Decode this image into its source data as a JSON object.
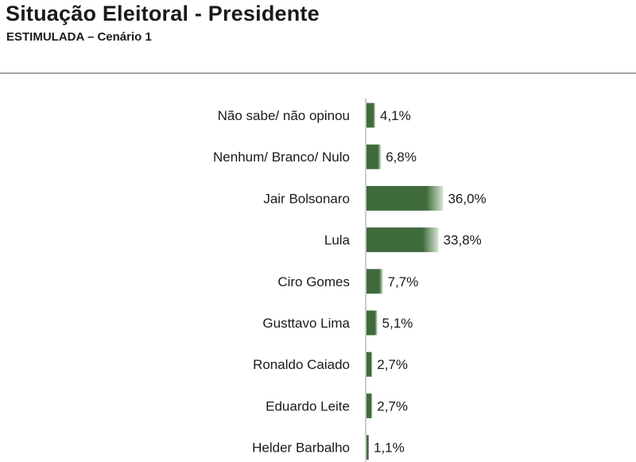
{
  "chart_data": {
    "type": "bar",
    "orientation": "horizontal",
    "title": "Situação Eleitoral - Presidente",
    "subtitle": "ESTIMULADA – Cenário 1",
    "categories": [
      "Não sabe/ não opinou",
      "Nenhum/ Branco/ Nulo",
      "Jair Bolsonaro",
      "Lula",
      "Ciro Gomes",
      "Gusttavo Lima",
      "Ronaldo Caiado",
      "Eduardo Leite",
      "Helder Barbalho"
    ],
    "values": [
      4.1,
      6.8,
      36.0,
      33.8,
      7.7,
      5.1,
      2.7,
      2.7,
      1.1
    ],
    "value_labels": [
      "4,1%",
      "6,8%",
      "36,0%",
      "33,8%",
      "7,7%",
      "5,1%",
      "2,7%",
      "2,7%",
      "1,1%"
    ],
    "unit": "%",
    "bar_color": "#3f6b3c",
    "bar_highlight": "#d9e6d5",
    "grid": false,
    "legend": "none"
  }
}
